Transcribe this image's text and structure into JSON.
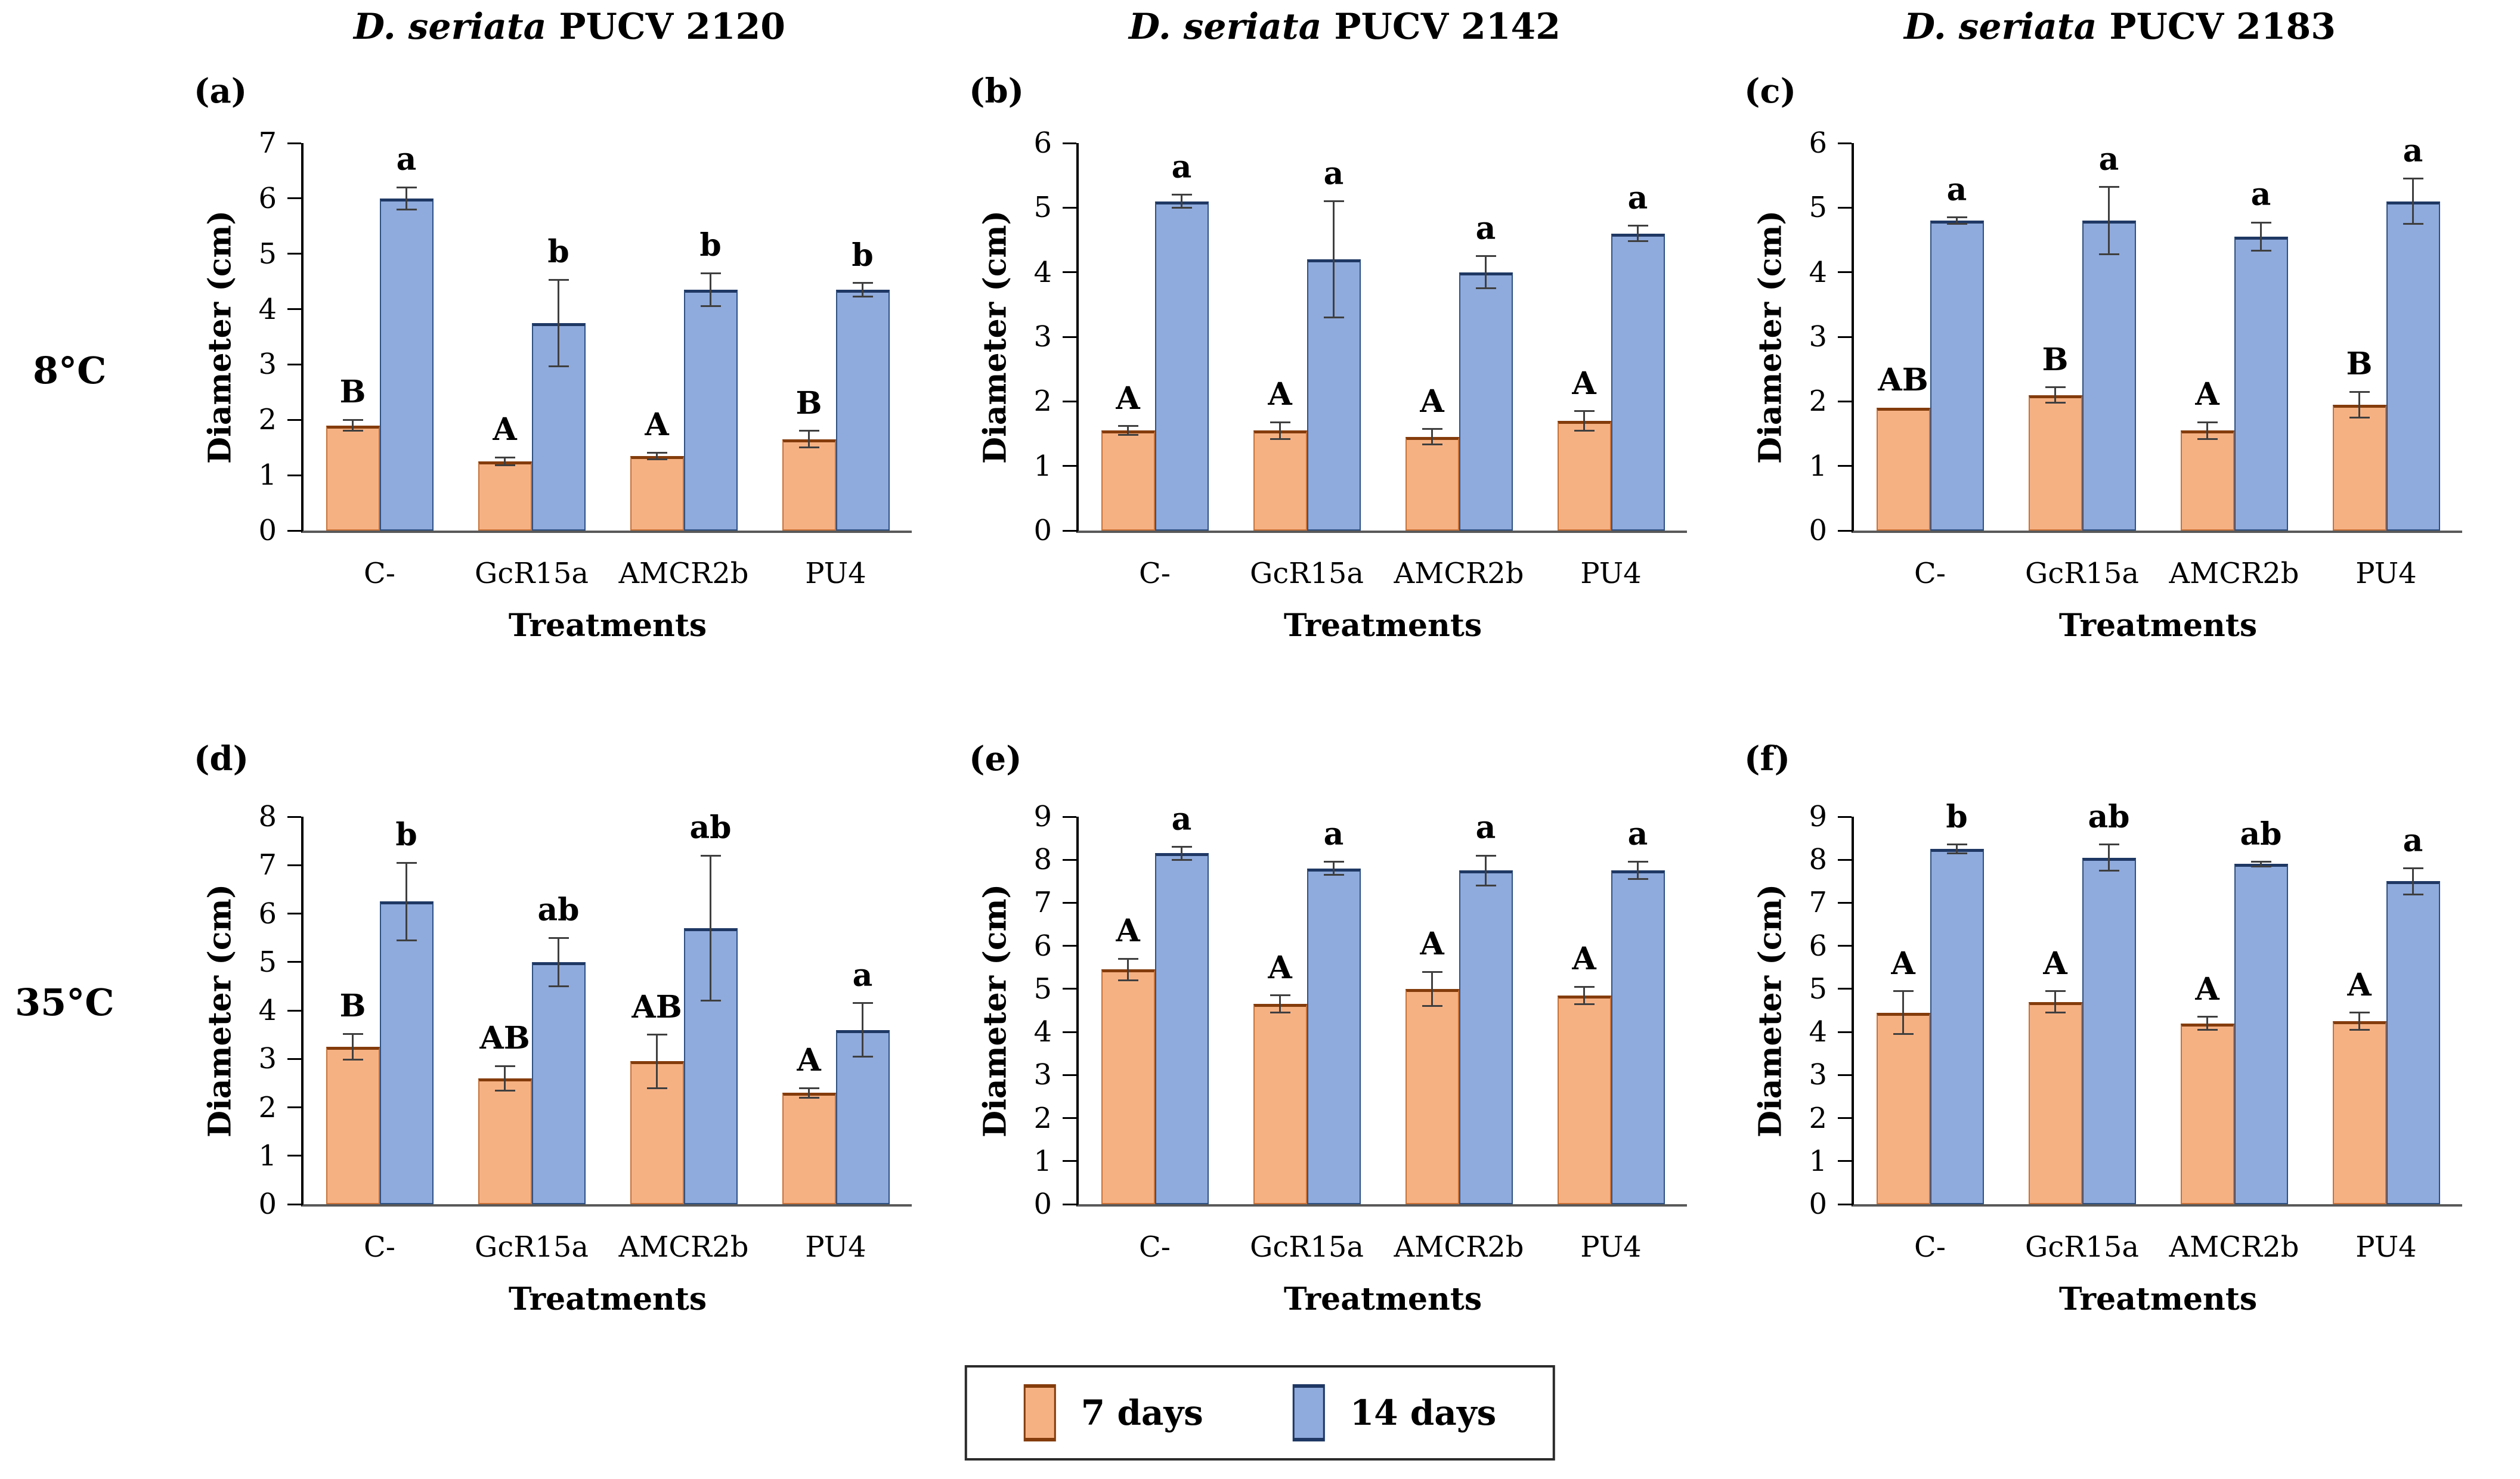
{
  "figure": {
    "row_labels": [
      "8°C",
      "35°C"
    ],
    "legend": [
      {
        "label": "7 days",
        "color": "#F6B183",
        "edge": "#843C0C"
      },
      {
        "label": "14 days",
        "color": "#8FAADC",
        "edge": "#1F3864"
      }
    ],
    "colors": {
      "orange_fill": "#F6B183",
      "orange_edge": "#843C0C",
      "blue_fill": "#8FAADC",
      "blue_edge": "#1F3864",
      "error_bar": "#3f3f3f",
      "axis": "#000000"
    }
  },
  "chart_data": [
    {
      "id": "a",
      "panel_label": "(a)",
      "temperature": "8°C",
      "title_italic": "D. seriata",
      "title_rest": "PUCV 2120",
      "type": "bar",
      "ylabel": "Diameter (cm)",
      "xlabel": "Treatments",
      "ylim": [
        0,
        7
      ],
      "ytick_step": 1,
      "grid": false,
      "categories": [
        "C-",
        "GcR15a",
        "AMCR2b",
        "PU4"
      ],
      "series": [
        {
          "name": "7 days",
          "values": [
            1.9,
            1.25,
            1.35,
            1.65
          ],
          "errors": [
            0.1,
            0.07,
            0.06,
            0.15
          ],
          "letters": [
            "B",
            "A",
            "A",
            "B"
          ]
        },
        {
          "name": "14 days",
          "values": [
            6.0,
            3.75,
            4.35,
            4.35
          ],
          "errors": [
            0.2,
            0.78,
            0.3,
            0.12
          ],
          "letters": [
            "a",
            "b",
            "b",
            "b"
          ]
        }
      ]
    },
    {
      "id": "b",
      "panel_label": "(b)",
      "temperature": "8°C",
      "title_italic": "D. seriata",
      "title_rest": "PUCV 2142",
      "type": "bar",
      "ylabel": "Diameter (cm)",
      "xlabel": "Treatments",
      "ylim": [
        0,
        6
      ],
      "ytick_step": 1,
      "grid": false,
      "categories": [
        "C-",
        "GcR15a",
        "AMCR2b",
        "PU4"
      ],
      "series": [
        {
          "name": "7 days",
          "values": [
            1.55,
            1.55,
            1.45,
            1.7
          ],
          "errors": [
            0.07,
            0.13,
            0.12,
            0.15
          ],
          "letters": [
            "A",
            "A",
            "A",
            "A"
          ]
        },
        {
          "name": "14 days",
          "values": [
            5.1,
            4.2,
            4.0,
            4.6
          ],
          "errors": [
            0.1,
            0.9,
            0.25,
            0.12
          ],
          "letters": [
            "a",
            "a",
            "a",
            "a"
          ]
        }
      ]
    },
    {
      "id": "c",
      "panel_label": "(c)",
      "temperature": "8°C",
      "title_italic": "D. seriata",
      "title_rest": "PUCV 2183",
      "type": "bar",
      "ylabel": "Diameter (cm)",
      "xlabel": "Treatments",
      "ylim": [
        0,
        6
      ],
      "ytick_step": 1,
      "grid": false,
      "categories": [
        "C-",
        "GcR15a",
        "AMCR2b",
        "PU4"
      ],
      "series": [
        {
          "name": "7 days",
          "values": [
            1.9,
            2.1,
            1.55,
            1.95
          ],
          "errors": [
            0,
            0.12,
            0.13,
            0.2
          ],
          "letters": [
            "AB",
            "B",
            "A",
            "B"
          ]
        },
        {
          "name": "14 days",
          "values": [
            4.8,
            4.8,
            4.55,
            5.1
          ],
          "errors": [
            0.05,
            0.52,
            0.22,
            0.35
          ],
          "letters": [
            "a",
            "a",
            "a",
            "a"
          ]
        }
      ]
    },
    {
      "id": "d",
      "panel_label": "(d)",
      "temperature": "35°C",
      "title_italic": "",
      "title_rest": "",
      "type": "bar",
      "ylabel": "Diameter (cm)",
      "xlabel": "Treatments",
      "ylim": [
        0,
        8
      ],
      "ytick_step": 1,
      "grid": false,
      "categories": [
        "C-",
        "GcR15a",
        "AMCR2b",
        "PU4"
      ],
      "series": [
        {
          "name": "7 days",
          "values": [
            3.25,
            2.6,
            2.95,
            2.3
          ],
          "errors": [
            0.27,
            0.25,
            0.55,
            0.1
          ],
          "letters": [
            "B",
            "AB",
            "AB",
            "A"
          ]
        },
        {
          "name": "14 days",
          "values": [
            6.25,
            5.0,
            5.7,
            3.6
          ],
          "errors": [
            0.8,
            0.5,
            1.5,
            0.55
          ],
          "letters": [
            "b",
            "ab",
            "ab",
            "a"
          ]
        }
      ]
    },
    {
      "id": "e",
      "panel_label": "(e)",
      "temperature": "35°C",
      "title_italic": "",
      "title_rest": "",
      "type": "bar",
      "ylabel": "Diameter (cm)",
      "xlabel": "Treatments",
      "ylim": [
        0,
        9
      ],
      "ytick_step": 1,
      "grid": false,
      "categories": [
        "C-",
        "GcR15a",
        "AMCR2b",
        "PU4"
      ],
      "series": [
        {
          "name": "7 days",
          "values": [
            5.45,
            4.65,
            5.0,
            4.85
          ],
          "errors": [
            0.25,
            0.2,
            0.4,
            0.2
          ],
          "letters": [
            "A",
            "A",
            "A",
            "A"
          ]
        },
        {
          "name": "14 days",
          "values": [
            8.15,
            7.8,
            7.75,
            7.75
          ],
          "errors": [
            0.15,
            0.15,
            0.35,
            0.2
          ],
          "letters": [
            "a",
            "a",
            "a",
            "a"
          ]
        }
      ]
    },
    {
      "id": "f",
      "panel_label": "(f)",
      "temperature": "35°C",
      "title_italic": "",
      "title_rest": "",
      "type": "bar",
      "ylabel": "Diameter (cm)",
      "xlabel": "Treatments",
      "ylim": [
        0,
        9
      ],
      "ytick_step": 1,
      "grid": false,
      "categories": [
        "C-",
        "GcR15a",
        "AMCR2b",
        "PU4"
      ],
      "series": [
        {
          "name": "7 days",
          "values": [
            4.45,
            4.7,
            4.2,
            4.25
          ],
          "errors": [
            0.5,
            0.25,
            0.15,
            0.2
          ],
          "letters": [
            "A",
            "A",
            "A",
            "A"
          ]
        },
        {
          "name": "14 days",
          "values": [
            8.25,
            8.05,
            7.9,
            7.5
          ],
          "errors": [
            0.1,
            0.3,
            0.05,
            0.3
          ],
          "letters": [
            "b",
            "ab",
            "ab",
            "a"
          ]
        }
      ]
    }
  ]
}
